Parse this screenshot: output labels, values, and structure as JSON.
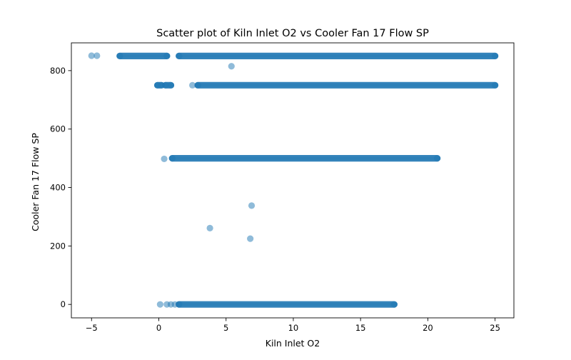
{
  "chart_data": {
    "type": "scatter",
    "title": "Scatter plot of Kiln Inlet O2 vs Cooler Fan 17 Flow SP",
    "xlabel": "Kiln Inlet O2",
    "ylabel": "Cooler Fan 17 Flow SP",
    "xlim": [
      -6.5,
      26.4
    ],
    "ylim": [
      -46,
      895
    ],
    "xticks": [
      -5,
      0,
      5,
      10,
      15,
      20,
      25
    ],
    "xtick_labels": [
      "−5",
      "0",
      "5",
      "10",
      "15",
      "20",
      "25"
    ],
    "yticks": [
      0,
      200,
      400,
      600,
      800
    ],
    "ytick_labels": [
      "0",
      "200",
      "400",
      "600",
      "800"
    ],
    "grid": false,
    "marker_color": "#1f77b4",
    "marker_alpha": 0.5,
    "bands": [
      {
        "y": 850,
        "segments": [
          [
            -2.9,
            0.6
          ],
          [
            1.5,
            25.0
          ]
        ]
      },
      {
        "y": 750,
        "segments": [
          [
            -0.1,
            0.2
          ],
          [
            0.5,
            0.9
          ],
          [
            2.9,
            25.0
          ]
        ]
      },
      {
        "y": 500,
        "segments": [
          [
            1.0,
            20.7
          ]
        ]
      },
      {
        "y": 0,
        "segments": [
          [
            1.5,
            17.5
          ]
        ]
      }
    ],
    "points": [
      {
        "x": -5.0,
        "y": 851
      },
      {
        "x": -4.6,
        "y": 851
      },
      {
        "x": 5.4,
        "y": 815
      },
      {
        "x": 2.5,
        "y": 750
      },
      {
        "x": 0.4,
        "y": 498
      },
      {
        "x": 6.9,
        "y": 338
      },
      {
        "x": 3.8,
        "y": 261
      },
      {
        "x": 6.8,
        "y": 225
      },
      {
        "x": 0.1,
        "y": 0
      },
      {
        "x": 0.6,
        "y": 0
      },
      {
        "x": 0.9,
        "y": 0
      },
      {
        "x": 1.2,
        "y": 0
      }
    ]
  }
}
